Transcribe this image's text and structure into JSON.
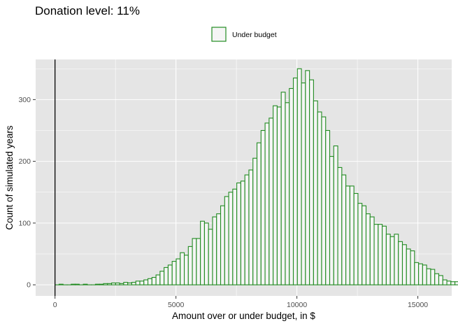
{
  "chart_data": {
    "type": "bar",
    "title": "Donation level: 11%",
    "xlabel": "Amount over or under budget, in $",
    "ylabel": "Count of simulated years",
    "legend": {
      "position": "top",
      "entries": [
        "Under budget"
      ]
    },
    "colors": {
      "panel": "#e5e5e5",
      "grid": "#ffffff",
      "bar_outline": "#228b22",
      "bar_fill": "#f5f5f5",
      "vline": "#000000"
    },
    "grid": true,
    "xlim": [
      -800,
      16400
    ],
    "ylim": [
      -18,
      365
    ],
    "x_ticks": [
      0,
      5000,
      10000,
      15000
    ],
    "x_tick_labels": [
      "0",
      "5000",
      "10000",
      "15000"
    ],
    "y_ticks": [
      0,
      100,
      200,
      300
    ],
    "y_tick_labels": [
      "0",
      "100",
      "200",
      "300"
    ],
    "reference_line_x": 0,
    "bin_width": 167,
    "bin_start": 0,
    "series": [
      {
        "name": "Under budget",
        "values": [
          0,
          1,
          0,
          0,
          1,
          1,
          0,
          1,
          0,
          0,
          1,
          1,
          2,
          2,
          3,
          3,
          2,
          4,
          3,
          4,
          6,
          6,
          8,
          10,
          12,
          16,
          22,
          28,
          32,
          38,
          42,
          52,
          48,
          62,
          75,
          75,
          103,
          100,
          90,
          110,
          115,
          128,
          143,
          150,
          155,
          165,
          168,
          178,
          186,
          205,
          230,
          250,
          262,
          270,
          290,
          288,
          312,
          295,
          318,
          335,
          350,
          327,
          347,
          332,
          298,
          280,
          272,
          250,
          208,
          225,
          190,
          178,
          160,
          160,
          148,
          132,
          128,
          115,
          110,
          98,
          98,
          95,
          82,
          78,
          82,
          70,
          65,
          58,
          55,
          36,
          34,
          32,
          26,
          25,
          18,
          15,
          8,
          6,
          5,
          5,
          3,
          3,
          2,
          1,
          2,
          1,
          1,
          1,
          1,
          1,
          1,
          1
        ]
      }
    ]
  }
}
